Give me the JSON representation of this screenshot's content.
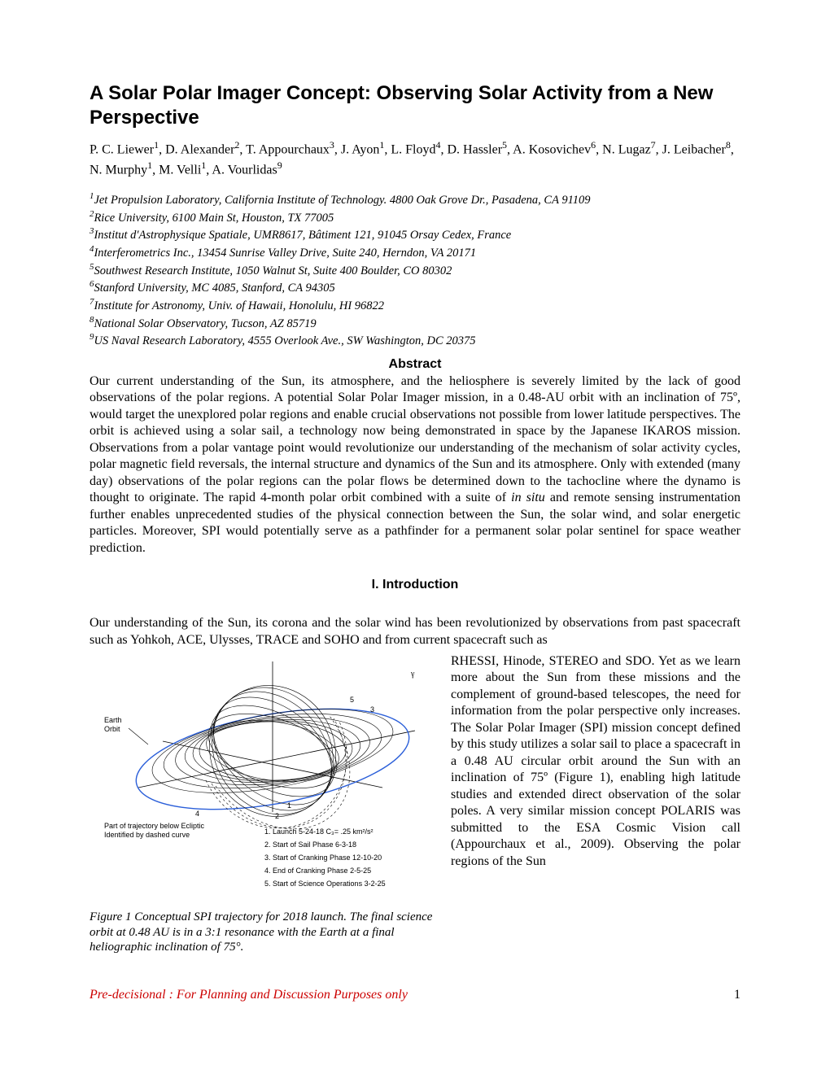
{
  "title": "A Solar Polar Imager Concept: Observing Solar Activity from a New Perspective",
  "authors_html": "P. C. Liewer<sup>1</sup>, D. Alexander<sup>2</sup>, T. Appourchaux<sup>3</sup>, J. Ayon<sup>1</sup>, L. Floyd<sup>4</sup>, D. Hassler<sup>5</sup>, A. Kosovichev<sup>6</sup>, N. Lugaz<sup>7</sup>, J. Leibacher<sup>8</sup>, N. Murphy<sup>1</sup>, M. Velli<sup>1</sup>, A. Vourlidas<sup>9</sup>",
  "affiliations": [
    "<sup>1</sup>Jet Propulsion Laboratory, California Institute of Technology. 4800 Oak Grove Dr., Pasadena, CA 91109",
    "<sup>2</sup>Rice University, 6100 Main St, Houston, TX 77005",
    "<sup>3</sup>Institut d'Astrophysique Spatiale, UMR8617, Bâtiment 121, 91045 Orsay Cedex, France",
    "<sup>4</sup>Interferometrics Inc., 13454 Sunrise Valley Drive, Suite 240, Herndon, VA 20171",
    "<sup>5</sup>Southwest Research Institute, 1050 Walnut St, Suite 400 Boulder, CO 80302",
    "<sup>6</sup>Stanford University, MC 4085, Stanford, CA 94305",
    "<sup>7</sup>Institute for Astronomy, Univ. of Hawaii, Honolulu, HI 96822",
    "<sup>8</sup>National Solar Observatory, Tucson, AZ 85719",
    "<sup>9</sup>US Naval Research Laboratory, 4555 Overlook Ave., SW Washington, DC 20375"
  ],
  "abstract_heading": "Abstract",
  "abstract_body": "Our current understanding of the Sun, its atmosphere, and the heliosphere is severely limited by the lack of good observations of the polar regions. A potential Solar Polar Imager mission, in a 0.48-AU orbit with an inclination of 75º, would target the unexplored polar regions and enable crucial observations not possible from lower latitude perspectives. The orbit is achieved using a solar sail, a technology now being demonstrated in space by the Japanese IKAROS mission. Observations from a polar vantage point would revolutionize our understanding of the mechanism of solar activity cycles, polar magnetic field reversals, the internal structure and dynamics of the Sun and its atmosphere. Only with extended (many day) observations of the polar regions can the polar flows be determined down to the tachocline where the dynamo is thought to originate. The rapid 4-month polar orbit combined with a suite of <i>in situ</i> and remote sensing instrumentation further enables unprecedented studies of the physical connection between the Sun, the solar wind, and solar energetic particles. Moreover, SPI would potentially serve as a pathfinder for a permanent solar polar sentinel for space weather prediction.",
  "section1_heading": "I. Introduction",
  "intro_lead": "Our understanding of the Sun, its corona and the solar wind has been revolutionized by observations from past spacecraft such as Yohkoh, ACE, Ulysses, TRACE and SOHO and from current spacecraft such as",
  "intro_right": "RHESSI, Hinode, STEREO and SDO. Yet as we learn more about the Sun from these missions and the complement of ground-based telescopes, the need for information from the polar perspective only increases. The Solar Polar Imager (SPI) mission concept defined by this study utilizes a solar sail to place a spacecraft in a 0.48 AU circular orbit around the Sun with an inclination of 75º (Figure 1), enabling high latitude studies and extended direct observation of the solar poles. A very similar mission concept POLARIS was submitted to the ESA Cosmic Vision call (Appourchaux et al., 2009). Observing the polar regions of the Sun",
  "figure1": {
    "caption": "Figure 1  Conceptual SPI trajectory for 2018 launch. The final science orbit at 0.48 AU is in a 3:1 resonance with the Earth at a final heliographic inclination of 75°.",
    "labels": {
      "earth_orbit": "Earth\nOrbit",
      "below_ecliptic": "Part of trajectory below Ecliptic\nIdentified by dashed curve",
      "axis_y": "γ",
      "legend": [
        "1.  Launch  5-24-18   C₃= .25 km²/s²",
        "2.  Start of Sail Phase  6-3-18",
        "3.  Start of Cranking Phase  12-10-20",
        "4.  End of Cranking Phase  2-5-25",
        "5.  Start of Science Operations  3-2-25"
      ]
    },
    "style": {
      "orbit_color": "#2b5fd9",
      "trajectory_color": "#000000",
      "dash_pattern": "3,3",
      "background": "#ffffff",
      "line_width_orbit": 1.2,
      "line_width_traj": 0.6
    }
  },
  "footer": {
    "left": "Pre-decisional : For Planning and Discussion Purposes only",
    "left_color": "#cc0000",
    "page_number": "1"
  },
  "typography": {
    "title_font": "Arial",
    "title_size_pt": 18,
    "body_font": "Times New Roman",
    "body_size_pt": 12,
    "affil_size_pt": 11
  }
}
